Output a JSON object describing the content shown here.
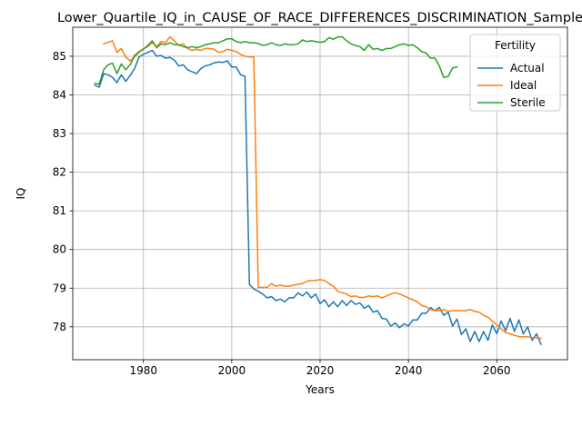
{
  "chart_data": {
    "type": "line",
    "title": "Lower_Quartile_IQ_in_CAUSE_OF_RACE_DIFFERENCES_DISCRIMINATION_Sample",
    "xlabel": "Years",
    "ylabel": "IQ",
    "xlim": [
      1964,
      2076
    ],
    "ylim": [
      77.15,
      85.75
    ],
    "xticks": [
      1980,
      2000,
      2020,
      2040,
      2060
    ],
    "yticks": [
      78,
      79,
      80,
      81,
      82,
      83,
      84,
      85
    ],
    "grid": true,
    "legend": {
      "title": "Fertility",
      "placement": "top-right"
    },
    "series": [
      {
        "name": "Actual",
        "color": "#1f77b4",
        "x": [
          1969,
          1970,
          1971,
          1972,
          1973,
          1974,
          1975,
          1976,
          1977,
          1978,
          1979,
          1980,
          1981,
          1982,
          1983,
          1984,
          1985,
          1986,
          1987,
          1988,
          1989,
          1990,
          1991,
          1992,
          1993,
          1994,
          1995,
          1996,
          1997,
          1998,
          1999,
          2000,
          2001,
          2002,
          2003,
          2004,
          2005,
          2006,
          2007,
          2008,
          2009,
          2010,
          2011,
          2012,
          2013,
          2014,
          2015,
          2016,
          2017,
          2018,
          2019,
          2020,
          2021,
          2022,
          2023,
          2024,
          2025,
          2026,
          2027,
          2028,
          2029,
          2030,
          2031,
          2032,
          2033,
          2034,
          2035,
          2036,
          2037,
          2038,
          2039,
          2040,
          2041,
          2042,
          2043,
          2044,
          2045,
          2046,
          2047,
          2048,
          2049,
          2050,
          2051,
          2052,
          2053,
          2054,
          2055,
          2056,
          2057,
          2058,
          2059,
          2060,
          2061,
          2062,
          2063,
          2064,
          2065,
          2066,
          2067,
          2068,
          2069,
          2070
        ],
        "values": [
          84.25,
          84.2,
          84.55,
          84.52,
          84.45,
          84.32,
          84.52,
          84.35,
          84.5,
          84.68,
          84.98,
          85.05,
          85.1,
          85.15,
          85.0,
          85.02,
          84.95,
          84.97,
          84.9,
          84.75,
          84.78,
          84.65,
          84.6,
          84.55,
          84.68,
          84.75,
          84.78,
          84.83,
          84.85,
          84.84,
          84.88,
          84.72,
          84.72,
          84.52,
          84.48,
          79.1,
          78.98,
          78.92,
          78.85,
          78.75,
          78.78,
          78.68,
          78.72,
          78.65,
          78.75,
          78.75,
          78.88,
          78.8,
          78.9,
          78.75,
          78.85,
          78.6,
          78.7,
          78.52,
          78.65,
          78.52,
          78.68,
          78.55,
          78.68,
          78.58,
          78.62,
          78.48,
          78.55,
          78.38,
          78.42,
          78.22,
          78.2,
          78.02,
          78.1,
          77.98,
          78.08,
          78.02,
          78.18,
          78.18,
          78.35,
          78.35,
          78.5,
          78.42,
          78.5,
          78.3,
          78.38,
          78.02,
          78.2,
          77.8,
          77.95,
          77.62,
          77.88,
          77.62,
          77.88,
          77.65,
          78.05,
          77.82,
          78.15,
          77.9,
          78.22,
          77.88,
          78.18,
          77.82,
          78.0,
          77.65,
          77.82,
          77.55
        ]
      },
      {
        "name": "Ideal",
        "color": "#ff7f0e",
        "x": [
          1971,
          1972,
          1973,
          1974,
          1975,
          1976,
          1977,
          1978,
          1979,
          1980,
          1981,
          1982,
          1983,
          1984,
          1985,
          1986,
          1987,
          1988,
          1989,
          1990,
          1991,
          1992,
          1993,
          1994,
          1995,
          1996,
          1997,
          1998,
          1999,
          2000,
          2001,
          2002,
          2003,
          2004,
          2005,
          2006,
          2007,
          2008,
          2009,
          2010,
          2011,
          2012,
          2013,
          2014,
          2015,
          2016,
          2017,
          2018,
          2019,
          2020,
          2021,
          2022,
          2023,
          2024,
          2025,
          2026,
          2027,
          2028,
          2029,
          2030,
          2031,
          2032,
          2033,
          2034,
          2035,
          2036,
          2037,
          2038,
          2039,
          2040,
          2041,
          2042,
          2043,
          2044,
          2045,
          2046,
          2047,
          2048,
          2049,
          2050,
          2051,
          2052,
          2053,
          2054,
          2055,
          2056,
          2057,
          2058,
          2059,
          2060,
          2061,
          2062,
          2063,
          2064,
          2065,
          2066,
          2067,
          2068,
          2069,
          2070
        ],
        "values": [
          85.32,
          85.36,
          85.4,
          85.1,
          85.2,
          84.98,
          84.88,
          84.98,
          85.1,
          85.2,
          85.25,
          85.35,
          85.25,
          85.38,
          85.35,
          85.5,
          85.4,
          85.28,
          85.32,
          85.2,
          85.15,
          85.18,
          85.15,
          85.2,
          85.2,
          85.18,
          85.1,
          85.12,
          85.18,
          85.15,
          85.12,
          85.05,
          85.0,
          84.98,
          84.98,
          79.02,
          79.02,
          79.02,
          79.12,
          79.05,
          79.08,
          79.05,
          79.05,
          79.08,
          79.1,
          79.12,
          79.18,
          79.2,
          79.2,
          79.22,
          79.2,
          79.12,
          79.05,
          78.92,
          78.88,
          78.85,
          78.78,
          78.8,
          78.76,
          78.76,
          78.8,
          78.78,
          78.8,
          78.75,
          78.8,
          78.85,
          78.88,
          78.85,
          78.8,
          78.75,
          78.7,
          78.65,
          78.55,
          78.52,
          78.45,
          78.42,
          78.42,
          78.45,
          78.4,
          78.42,
          78.42,
          78.42,
          78.42,
          78.45,
          78.4,
          78.38,
          78.3,
          78.25,
          78.15,
          78.05,
          77.95,
          77.85,
          77.82,
          77.78,
          77.75,
          77.74,
          77.74,
          77.72,
          77.72,
          77.7
        ]
      },
      {
        "name": "Sterile",
        "color": "#2ca02c",
        "x": [
          1969,
          1970,
          1971,
          1972,
          1973,
          1974,
          1975,
          1976,
          1977,
          1978,
          1979,
          1980,
          1981,
          1982,
          1983,
          1984,
          1985,
          1986,
          1987,
          1988,
          1989,
          1990,
          1991,
          1992,
          1993,
          1994,
          1995,
          1996,
          1997,
          1998,
          1999,
          2000,
          2001,
          2002,
          2003,
          2004,
          2005,
          2006,
          2007,
          2008,
          2009,
          2010,
          2011,
          2012,
          2013,
          2014,
          2015,
          2016,
          2017,
          2018,
          2019,
          2020,
          2021,
          2022,
          2023,
          2024,
          2025,
          2026,
          2027,
          2028,
          2029,
          2030,
          2031,
          2032,
          2033,
          2034,
          2035,
          2036,
          2037,
          2038,
          2039,
          2040,
          2041,
          2042,
          2043,
          2044,
          2045,
          2046,
          2047,
          2048,
          2049,
          2050,
          2051
        ],
        "values": [
          84.3,
          84.28,
          84.65,
          84.78,
          84.82,
          84.55,
          84.8,
          84.65,
          84.78,
          85.02,
          85.12,
          85.18,
          85.28,
          85.4,
          85.22,
          85.32,
          85.3,
          85.35,
          85.3,
          85.3,
          85.25,
          85.22,
          85.25,
          85.22,
          85.25,
          85.3,
          85.32,
          85.35,
          85.35,
          85.4,
          85.45,
          85.45,
          85.38,
          85.35,
          85.38,
          85.35,
          85.35,
          85.33,
          85.28,
          85.3,
          85.35,
          85.3,
          85.28,
          85.32,
          85.3,
          85.3,
          85.32,
          85.42,
          85.38,
          85.4,
          85.38,
          85.36,
          85.38,
          85.48,
          85.44,
          85.5,
          85.5,
          85.4,
          85.32,
          85.28,
          85.25,
          85.15,
          85.3,
          85.18,
          85.2,
          85.15,
          85.2,
          85.2,
          85.25,
          85.3,
          85.32,
          85.28,
          85.3,
          85.22,
          85.12,
          85.08,
          84.95,
          84.95,
          84.75,
          84.45,
          84.48,
          84.7,
          84.72
        ]
      }
    ]
  }
}
